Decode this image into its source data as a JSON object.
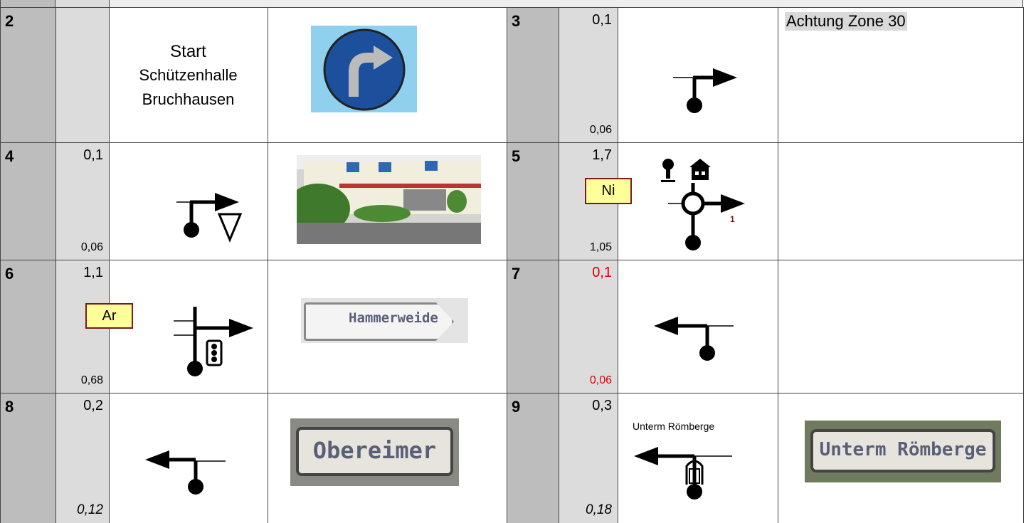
{
  "entries": [
    {
      "number": "2",
      "start": [
        "Start",
        "Schützenhalle",
        "Bruchhausen"
      ]
    },
    {
      "number": "3",
      "distance": "0,1",
      "total": "0,06",
      "note": "Achtung Zone 30"
    },
    {
      "number": "4",
      "distance": "0,1",
      "total": "0,06"
    },
    {
      "number": "5",
      "distance": "1,7",
      "total": "1,05",
      "tag": "Ni",
      "exit": "1"
    },
    {
      "number": "6",
      "distance": "1,1",
      "total": "0,68",
      "tag": "Ar",
      "sign": "Hammerweide"
    },
    {
      "number": "7",
      "distance": "0,1",
      "total": "0,06"
    },
    {
      "number": "8",
      "distance": "0,2",
      "total": "0,12",
      "sign": "Obereimer"
    },
    {
      "number": "9",
      "distance": "0,3",
      "total": "0,18",
      "label": "Unterm Römberge",
      "sign": "Unterm Römberge"
    }
  ]
}
